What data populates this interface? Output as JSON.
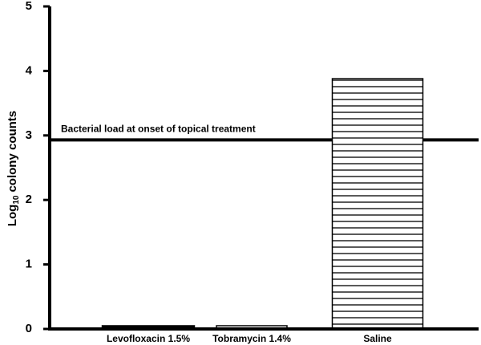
{
  "chart_data": {
    "type": "bar",
    "y_label": "Log",
    "y_label_subscript": "10",
    "y_label_suffix": "colony counts",
    "categories": [
      "Levofloxacin 1.5%",
      "Tobramycin 1.4%",
      "Saline"
    ],
    "values": [
      0.05,
      0.05,
      3.88
    ],
    "bar_styles": [
      "solid",
      "hatch",
      "hatch"
    ],
    "color": "#000000",
    "ylim": [
      0,
      5
    ],
    "yticks": [
      0,
      1,
      2,
      3,
      4,
      5
    ],
    "reference_line": {
      "value": 2.93,
      "label": "Bacterial load at onset of topical treatment"
    }
  }
}
